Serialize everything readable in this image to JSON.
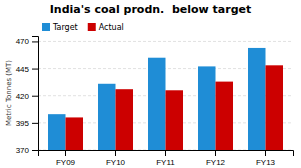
{
  "chart_data": {
    "type": "bar",
    "title": "India's coal prodn.  below target",
    "categories": [
      "FY09",
      "FY10",
      "FY11",
      "FY12",
      "FY13"
    ],
    "series": [
      {
        "name": "Target",
        "color": "#1F8DD6",
        "values": [
          403,
          431,
          455,
          447,
          464
        ]
      },
      {
        "name": "Actual",
        "color": "#CC0000",
        "values": [
          400,
          426,
          425,
          433,
          448
        ]
      }
    ],
    "ylabel": "Metric Tonnes (MT)",
    "ylim": [
      370,
      475
    ],
    "yticks": [
      370,
      395,
      420,
      445,
      470
    ],
    "grid": true,
    "legend": "upper left"
  }
}
